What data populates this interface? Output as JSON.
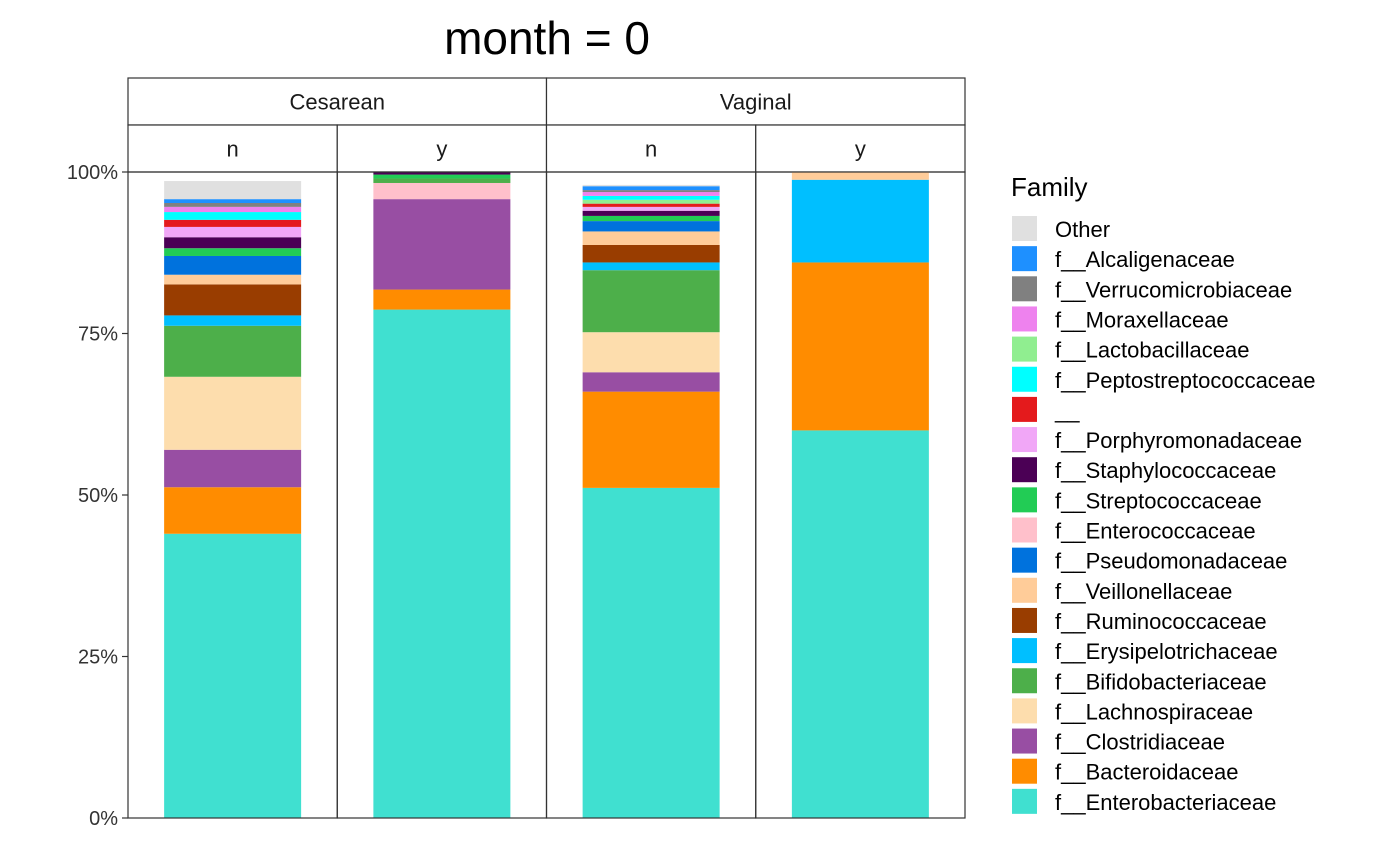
{
  "chart_data": {
    "type": "bar",
    "title": "month = 0",
    "xlabel": "",
    "ylabel": "",
    "ylim": [
      0,
      1
    ],
    "y_ticks": [
      "0%",
      "25%",
      "50%",
      "75%",
      "100%"
    ],
    "y_tick_values": [
      0,
      0.25,
      0.5,
      0.75,
      1
    ],
    "grid": false,
    "legend": {
      "title": "Family",
      "placement": "right",
      "entries": [
        {
          "name": "Other",
          "color": "#E0E0E0"
        },
        {
          "name": "f__Alcaligenaceae",
          "color": "#1E90FF"
        },
        {
          "name": "f__Verrucomicrobiaceae",
          "color": "#808080"
        },
        {
          "name": "f__Moraxellaceae",
          "color": "#EE82EE"
        },
        {
          "name": "f__Lactobacillaceae",
          "color": "#90EE90"
        },
        {
          "name": "f__Peptostreptococcaceae",
          "color": "#00FFFF"
        },
        {
          "name": "__",
          "color": "#E41A1C"
        },
        {
          "name": "f__Porphyromonadaceae",
          "color": "#F1A7F7"
        },
        {
          "name": "f__Staphylococcaceae",
          "color": "#4B0055"
        },
        {
          "name": "f__Streptococcaceae",
          "color": "#22CC55"
        },
        {
          "name": "f__Enterococcaceae",
          "color": "#FFC0CB"
        },
        {
          "name": "f__Pseudomonadaceae",
          "color": "#0072DD"
        },
        {
          "name": "f__Veillonellaceae",
          "color": "#FFCC99"
        },
        {
          "name": "f__Ruminococcaceae",
          "color": "#993D00"
        },
        {
          "name": "f__Erysipelotrichaceae",
          "color": "#00BFFF"
        },
        {
          "name": "f__Bifidobacteriaceae",
          "color": "#4DAF4A"
        },
        {
          "name": "f__Lachnospiraceae",
          "color": "#FDDDAD"
        },
        {
          "name": "f__Clostridiaceae",
          "color": "#984EA3"
        },
        {
          "name": "f__Bacteroidaceae",
          "color": "#FF8C00"
        },
        {
          "name": "f__Enterobacteriaceae",
          "color": "#40E0D0"
        }
      ]
    },
    "facet_rows": [
      {
        "label": "Cesarean",
        "columns": [
          "n",
          "y"
        ]
      },
      {
        "label": "Vaginal",
        "columns": [
          "n",
          "y"
        ]
      }
    ],
    "panels": [
      {
        "group": "Cesarean",
        "subgroup": "n",
        "stack": [
          {
            "family": "f__Enterobacteriaceae",
            "value": 0.44
          },
          {
            "family": "f__Bacteroidaceae",
            "value": 0.072
          },
          {
            "family": "f__Clostridiaceae",
            "value": 0.058
          },
          {
            "family": "f__Lachnospiraceae",
            "value": 0.113
          },
          {
            "family": "f__Bifidobacteriaceae",
            "value": 0.079
          },
          {
            "family": "f__Erysipelotrichaceae",
            "value": 0.016
          },
          {
            "family": "f__Ruminococcaceae",
            "value": 0.048
          },
          {
            "family": "f__Veillonellaceae",
            "value": 0.015
          },
          {
            "family": "f__Pseudomonadaceae",
            "value": 0.029
          },
          {
            "family": "f__Streptococcaceae",
            "value": 0.012
          },
          {
            "family": "f__Staphylococcaceae",
            "value": 0.017
          },
          {
            "family": "f__Enterococcaceae",
            "value": 0.0
          },
          {
            "family": "f__Porphyromonadaceae",
            "value": 0.016
          },
          {
            "family": "__",
            "value": 0.011
          },
          {
            "family": "f__Peptostreptococcaceae",
            "value": 0.012
          },
          {
            "family": "f__Lactobacillaceae",
            "value": 0.0
          },
          {
            "family": "f__Moraxellaceae",
            "value": 0.008
          },
          {
            "family": "f__Verrucomicrobiaceae",
            "value": 0.006
          },
          {
            "family": "f__Alcaligenaceae",
            "value": 0.006
          },
          {
            "family": "Other",
            "value": 0.028
          }
        ]
      },
      {
        "group": "Cesarean",
        "subgroup": "y",
        "stack": [
          {
            "family": "f__Enterobacteriaceae",
            "value": 0.787
          },
          {
            "family": "f__Bacteroidaceae",
            "value": 0.031
          },
          {
            "family": "f__Clostridiaceae",
            "value": 0.14
          },
          {
            "family": "f__Enterococcaceae",
            "value": 0.025
          },
          {
            "family": "f__Bifidobacteriaceae",
            "value": 0.007
          },
          {
            "family": "f__Streptococcaceae",
            "value": 0.006
          },
          {
            "family": "f__Staphylococcaceae",
            "value": 0.004
          }
        ]
      },
      {
        "group": "Vaginal",
        "subgroup": "n",
        "stack": [
          {
            "family": "f__Enterobacteriaceae",
            "value": 0.511
          },
          {
            "family": "f__Bacteroidaceae",
            "value": 0.149
          },
          {
            "family": "f__Clostridiaceae",
            "value": 0.03
          },
          {
            "family": "f__Lachnospiraceae",
            "value": 0.062
          },
          {
            "family": "f__Bifidobacteriaceae",
            "value": 0.096
          },
          {
            "family": "f__Erysipelotrichaceae",
            "value": 0.012
          },
          {
            "family": "f__Ruminococcaceae",
            "value": 0.027
          },
          {
            "family": "f__Veillonellaceae",
            "value": 0.021
          },
          {
            "family": "f__Pseudomonadaceae",
            "value": 0.016
          },
          {
            "family": "f__Streptococcaceae",
            "value": 0.008
          },
          {
            "family": "f__Staphylococcaceae",
            "value": 0.008
          },
          {
            "family": "f__Porphyromonadaceae",
            "value": 0.006
          },
          {
            "family": "__",
            "value": 0.005
          },
          {
            "family": "f__Lactobacillaceae",
            "value": 0.006
          },
          {
            "family": "f__Peptostreptococcaceae",
            "value": 0.006
          },
          {
            "family": "f__Moraxellaceae",
            "value": 0.006
          },
          {
            "family": "f__Verrucomicrobiaceae",
            "value": 0.003
          },
          {
            "family": "f__Alcaligenaceae",
            "value": 0.006
          },
          {
            "family": "Other",
            "value": 0.002
          }
        ]
      },
      {
        "group": "Vaginal",
        "subgroup": "y",
        "stack": [
          {
            "family": "f__Enterobacteriaceae",
            "value": 0.6
          },
          {
            "family": "f__Bacteroidaceae",
            "value": 0.26
          },
          {
            "family": "f__Erysipelotrichaceae",
            "value": 0.128
          },
          {
            "family": "f__Veillonellaceae",
            "value": 0.012
          }
        ]
      }
    ]
  }
}
